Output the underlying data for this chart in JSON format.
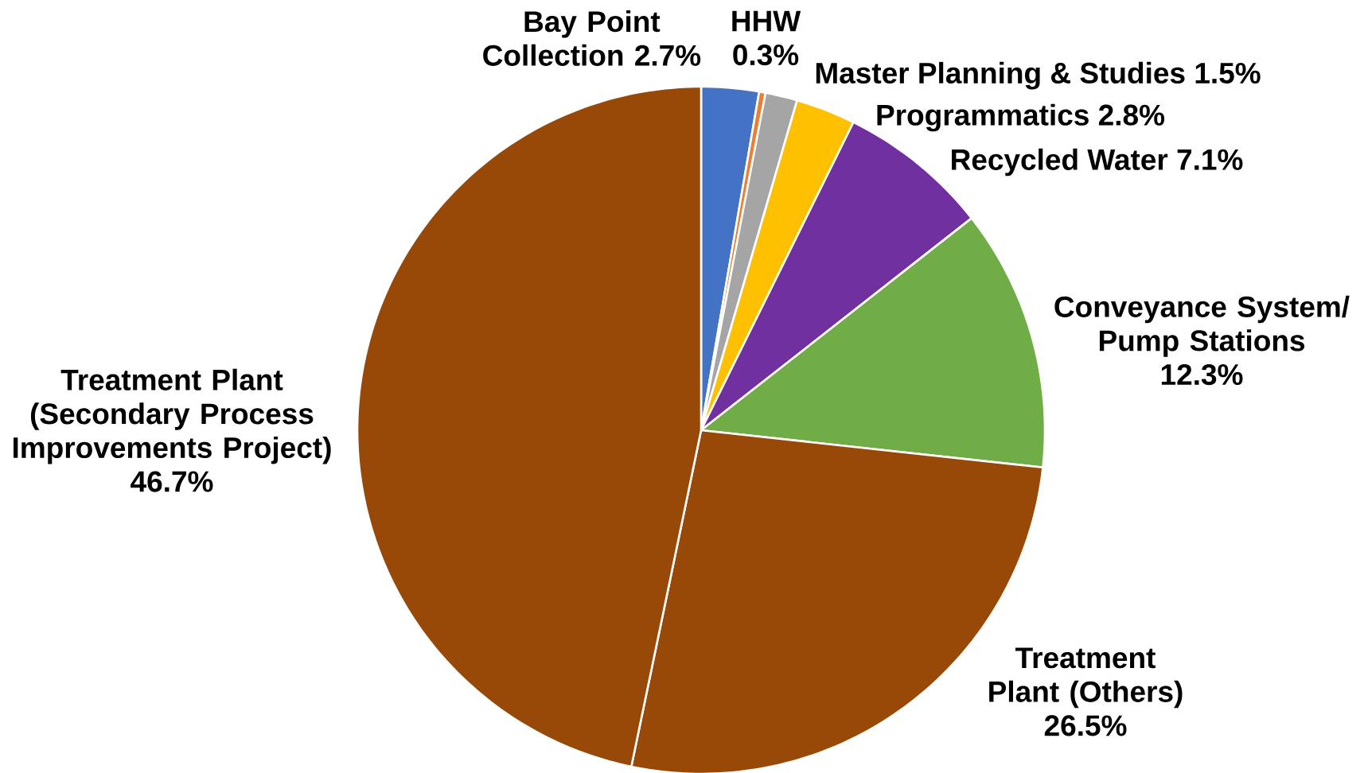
{
  "chart_data": {
    "type": "pie",
    "categories": [
      "Bay Point Collection",
      "HHW",
      "Master Planning & Studies",
      "Programmatics",
      "Recycled Water",
      "Conveyance System/ Pump Stations",
      "Treatment Plant (Others)",
      "Treatment Plant (Secondary Process Improvements Project)"
    ],
    "values": [
      2.7,
      0.3,
      1.5,
      2.8,
      7.1,
      12.3,
      26.5,
      46.7
    ],
    "value_labels": [
      "2.7%",
      "0.3%",
      "1.5%",
      "2.8%",
      "7.1%",
      "12.3%",
      "26.5%",
      "46.7%"
    ],
    "colors": [
      "#4472c4",
      "#ed7d31",
      "#a5a5a5",
      "#ffc000",
      "#7030a0",
      "#70ad47",
      "#984807",
      "#984807"
    ]
  }
}
